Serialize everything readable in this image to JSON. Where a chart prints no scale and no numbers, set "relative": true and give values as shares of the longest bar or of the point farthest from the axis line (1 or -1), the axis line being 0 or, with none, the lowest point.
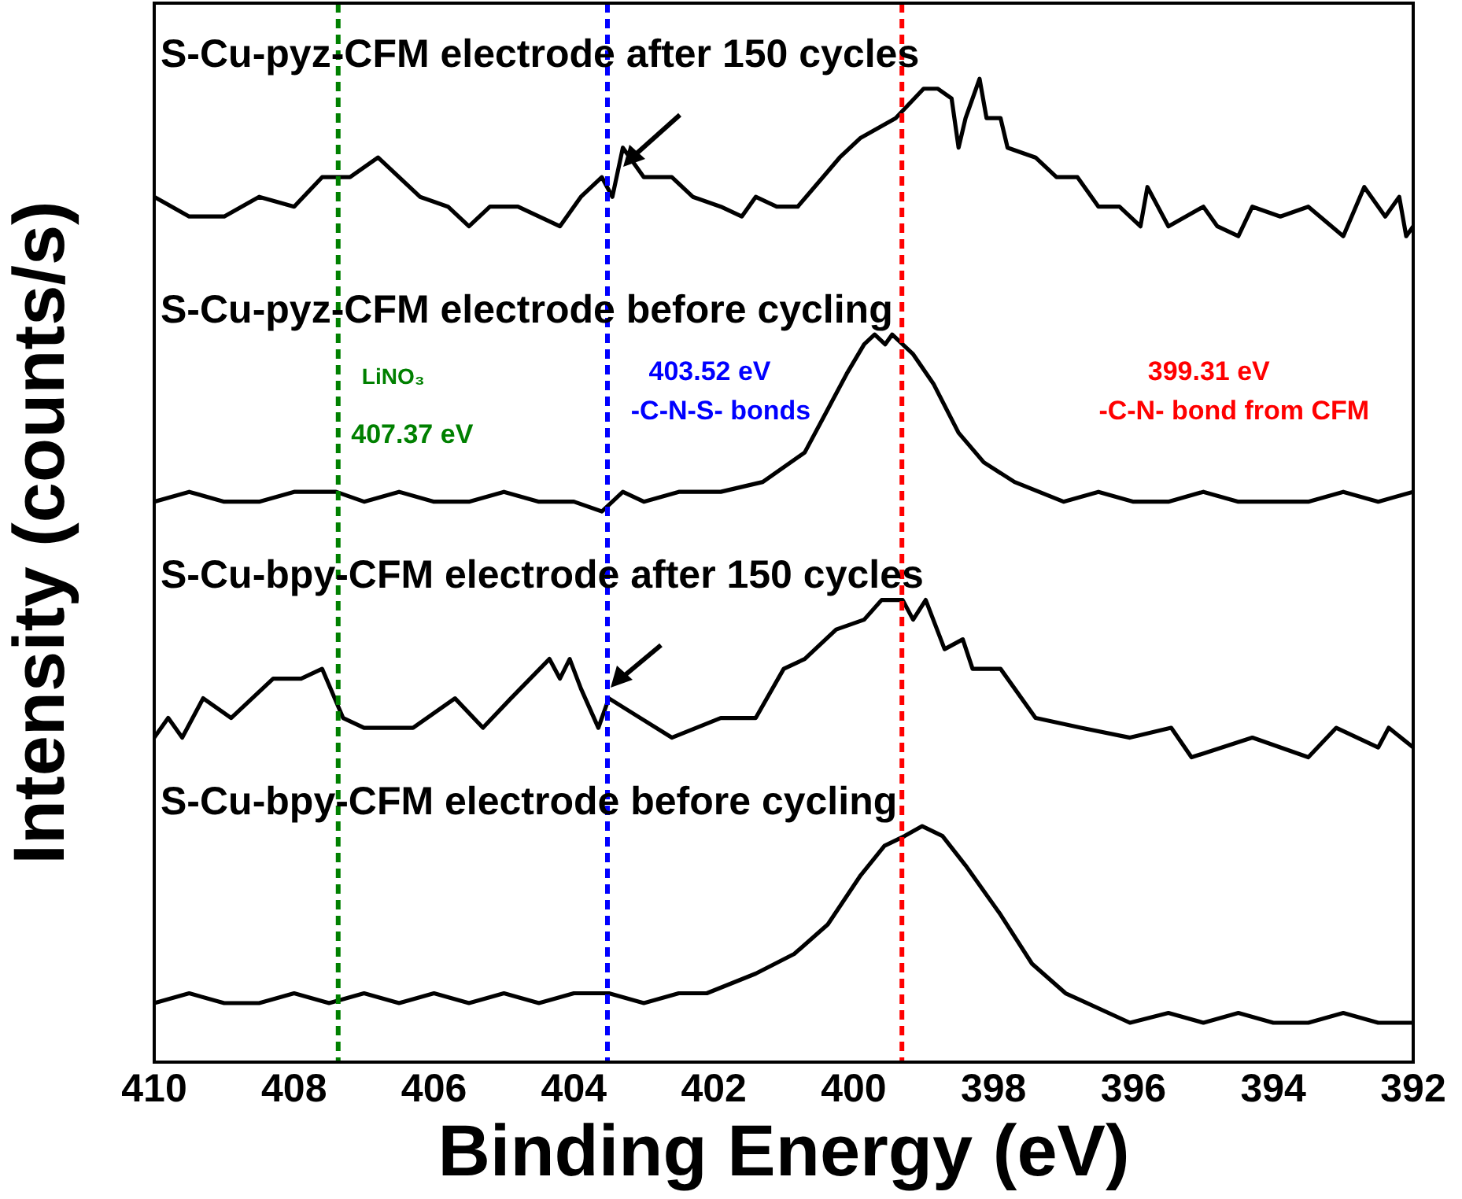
{
  "chart_data": {
    "type": "line",
    "relative": true,
    "xlabel": "Binding Energy (eV)",
    "ylabel": "Intensity (counts/s)",
    "xlim": [
      410,
      392
    ],
    "xticks": [
      410,
      408,
      406,
      404,
      402,
      400,
      398,
      396,
      394,
      392
    ],
    "grid": false,
    "legend": false,
    "marker": "none",
    "tick_labels": "x",
    "series": [
      {
        "name": "S-Cu-pyz-CFM electrode after 150 cycles",
        "color": "#000000",
        "x": [
          410,
          409.5,
          409,
          408.5,
          408,
          407.6,
          407.2,
          406.8,
          406.5,
          406.2,
          405.8,
          405.5,
          405.2,
          404.8,
          404.2,
          403.9,
          403.6,
          403.45,
          403.3,
          403,
          402.6,
          402.3,
          401.9,
          401.6,
          401.4,
          401.1,
          400.8,
          400.2,
          399.9,
          399.4,
          399,
          398.8,
          398.6,
          398.5,
          398.4,
          398.2,
          398.1,
          397.9,
          397.8,
          397.4,
          397.1,
          396.8,
          396.5,
          396.2,
          395.9,
          395.8,
          395.5,
          395,
          394.8,
          394.5,
          394.3,
          393.9,
          393.5,
          393,
          392.7,
          392.4,
          392.2,
          392.1,
          392
        ],
        "values": [
          0.88,
          0.86,
          0.86,
          0.88,
          0.87,
          0.9,
          0.9,
          0.92,
          0.9,
          0.88,
          0.87,
          0.85,
          0.87,
          0.87,
          0.85,
          0.88,
          0.9,
          0.88,
          0.93,
          0.9,
          0.9,
          0.88,
          0.87,
          0.86,
          0.88,
          0.87,
          0.87,
          0.92,
          0.94,
          0.96,
          0.99,
          0.99,
          0.98,
          0.93,
          0.96,
          1,
          0.96,
          0.96,
          0.93,
          0.92,
          0.9,
          0.9,
          0.87,
          0.87,
          0.85,
          0.89,
          0.85,
          0.87,
          0.85,
          0.84,
          0.87,
          0.86,
          0.87,
          0.84,
          0.89,
          0.86,
          0.88,
          0.84,
          0.85
        ]
      },
      {
        "name": "S-Cu-pyz-CFM electrode before cycling",
        "color": "#000000",
        "x": [
          410,
          409.5,
          409,
          408.5,
          408,
          407.4,
          407,
          406.5,
          406,
          405.5,
          405,
          404.5,
          404,
          403.6,
          403.3,
          403,
          402.5,
          402,
          401.9,
          401.3,
          400.7,
          400.4,
          400.1,
          399.85,
          399.7,
          399.55,
          399.45,
          399.15,
          398.86,
          398.5,
          398.14,
          397.7,
          397,
          396.5,
          396,
          395.5,
          395,
          394.5,
          394,
          393.5,
          393,
          392.5,
          392
        ],
        "values": [
          0.57,
          0.58,
          0.57,
          0.57,
          0.58,
          0.58,
          0.57,
          0.58,
          0.57,
          0.57,
          0.58,
          0.57,
          0.57,
          0.56,
          0.58,
          0.57,
          0.58,
          0.58,
          0.58,
          0.59,
          0.62,
          0.66,
          0.7,
          0.73,
          0.74,
          0.73,
          0.74,
          0.72,
          0.69,
          0.64,
          0.61,
          0.59,
          0.57,
          0.58,
          0.57,
          0.57,
          0.58,
          0.57,
          0.57,
          0.57,
          0.58,
          0.57,
          0.58
        ]
      },
      {
        "name": "S-Cu-bpy-CFM electrode after 150 cycles",
        "color": "#000000",
        "x": [
          410,
          409.8,
          409.6,
          409.3,
          408.9,
          408.3,
          407.9,
          407.6,
          407.3,
          407,
          406.3,
          405.7,
          405.3,
          404.9,
          404.35,
          404.2,
          404.06,
          403.9,
          403.65,
          403.5,
          403.05,
          402.6,
          401.9,
          401.4,
          401,
          400.7,
          400.25,
          399.85,
          399.6,
          399.3,
          399.15,
          398.97,
          398.7,
          398.44,
          398.3,
          397.9,
          397.4,
          396.75,
          396.05,
          395.46,
          395.17,
          394.3,
          393.5,
          393.1,
          392.5,
          392.35,
          392
        ],
        "values": [
          0.33,
          0.35,
          0.33,
          0.37,
          0.35,
          0.39,
          0.39,
          0.4,
          0.35,
          0.34,
          0.34,
          0.37,
          0.34,
          0.37,
          0.41,
          0.39,
          0.41,
          0.38,
          0.34,
          0.37,
          0.35,
          0.33,
          0.35,
          0.35,
          0.4,
          0.41,
          0.44,
          0.45,
          0.47,
          0.47,
          0.45,
          0.47,
          0.42,
          0.43,
          0.4,
          0.4,
          0.35,
          0.34,
          0.33,
          0.34,
          0.31,
          0.33,
          0.31,
          0.34,
          0.32,
          0.34,
          0.32
        ]
      },
      {
        "name": "S-Cu-bpy-CFM electrode before cycling",
        "color": "#000000",
        "x": [
          410,
          409.5,
          409,
          408.5,
          408,
          407.5,
          407,
          406.5,
          406,
          405.5,
          405,
          404.5,
          404,
          403.5,
          403,
          402.5,
          402.1,
          401.4,
          400.85,
          400.37,
          399.9,
          399.56,
          399.27,
          399.02,
          398.73,
          398.4,
          397.9,
          397.45,
          396.97,
          396.05,
          395.5,
          395,
          394.5,
          394,
          393.5,
          393,
          392.5,
          392
        ],
        "values": [
          0.06,
          0.07,
          0.06,
          0.06,
          0.07,
          0.06,
          0.07,
          0.06,
          0.07,
          0.06,
          0.07,
          0.06,
          0.07,
          0.07,
          0.06,
          0.07,
          0.07,
          0.09,
          0.11,
          0.14,
          0.19,
          0.22,
          0.23,
          0.24,
          0.23,
          0.2,
          0.15,
          0.1,
          0.07,
          0.04,
          0.05,
          0.04,
          0.05,
          0.04,
          0.04,
          0.05,
          0.04,
          0.04
        ]
      }
    ],
    "ref_lines": [
      {
        "axis": "x",
        "value": 407.37,
        "color": "#008000",
        "line_style": "dashed"
      },
      {
        "axis": "x",
        "value": 403.52,
        "color": "#0000ff",
        "line_style": "dashed"
      },
      {
        "axis": "x",
        "value": 399.31,
        "color": "#ff0000",
        "line_style": "dashed"
      }
    ],
    "annotations": [
      "LiNO₃",
      "407.37 eV",
      "403.52 eV",
      "-C-N-S- bonds",
      "399.31 eV",
      "-C-N- bond from CFM"
    ]
  }
}
